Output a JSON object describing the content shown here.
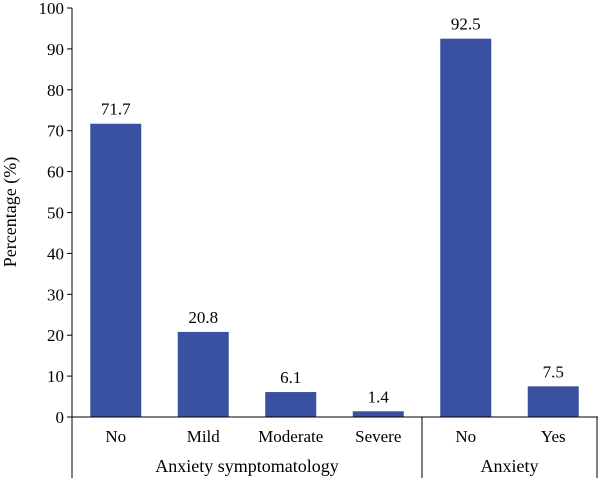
{
  "chart_data": {
    "type": "bar",
    "title": "",
    "ylabel": "Percentage (%)",
    "ylim": [
      0,
      100
    ],
    "yticks": [
      0,
      10,
      20,
      30,
      40,
      50,
      60,
      70,
      80,
      90,
      100
    ],
    "grid": false,
    "legend": "none",
    "bar_color": "#3a50a0",
    "groups": [
      {
        "name": "Anxiety symptomatology",
        "categories": [
          "No",
          "Mild",
          "Moderate",
          "Severe"
        ],
        "values": [
          71.7,
          20.8,
          6.1,
          1.4
        ],
        "value_labels": [
          "71.7",
          "20.8",
          "6.1",
          "1.4"
        ]
      },
      {
        "name": "Anxiety",
        "categories": [
          "No",
          "Yes"
        ],
        "values": [
          92.5,
          7.5
        ],
        "value_labels": [
          "92.5",
          "7.5"
        ]
      }
    ]
  }
}
